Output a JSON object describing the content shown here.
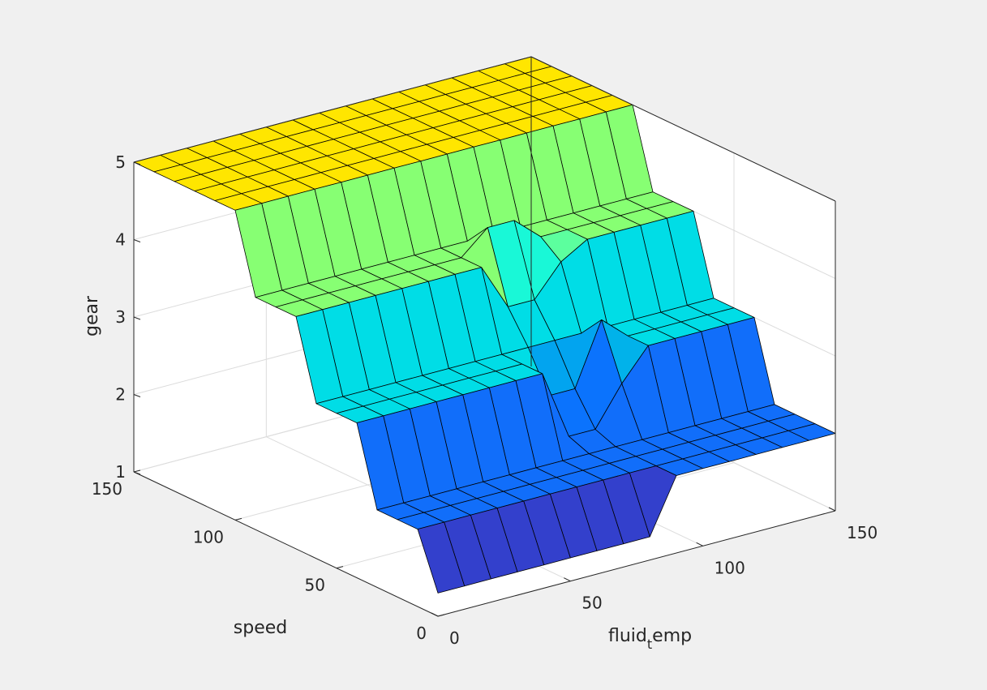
{
  "chart_data": {
    "type": "surface",
    "title": "",
    "xlabel": "speed",
    "ylabel": "fluid",
    "ylabel_subscript": "t",
    "ylabel_rest": "emp",
    "zlabel": "gear",
    "x_ticks": [
      "0",
      "50",
      "100",
      "150"
    ],
    "y_ticks": [
      "0",
      "50",
      "100",
      "150"
    ],
    "z_ticks": [
      "1",
      "2",
      "3",
      "4",
      "5"
    ],
    "xlim": [
      0,
      150
    ],
    "ylim": [
      0,
      150
    ],
    "zlim": [
      1,
      5
    ],
    "grid": true,
    "colormap": "parula",
    "x": [
      0,
      10,
      20,
      30,
      40,
      50,
      60,
      70,
      80,
      90,
      100,
      110,
      120,
      130,
      140,
      150
    ],
    "y": [
      0,
      10,
      20,
      30,
      40,
      50,
      60,
      70,
      80,
      90,
      100,
      110,
      120,
      130,
      140,
      150
    ],
    "z": [
      [
        1.3,
        1.3,
        1.3,
        1.3,
        1.3,
        1.3,
        1.3,
        1.3,
        1.3,
        2.0,
        2.0,
        2.0,
        2.0,
        2.0,
        2.0,
        2.0
      ],
      [
        2.0,
        2.0,
        2.0,
        2.0,
        2.0,
        2.0,
        2.0,
        2.0,
        2.0,
        2.0,
        2.0,
        2.0,
        2.0,
        2.0,
        2.0,
        2.0
      ],
      [
        2.0,
        2.0,
        2.0,
        2.0,
        2.0,
        2.0,
        2.0,
        2.0,
        2.0,
        2.0,
        2.0,
        2.0,
        2.0,
        2.0,
        2.0,
        2.0
      ],
      [
        2.0,
        2.0,
        2.0,
        2.0,
        2.0,
        2.0,
        2.0,
        2.0,
        2.0,
        2.0,
        2.0,
        2.0,
        2.0,
        2.0,
        2.0,
        2.0
      ],
      [
        3.0,
        3.0,
        3.0,
        3.0,
        3.0,
        3.0,
        3.0,
        3.0,
        2.1,
        2.1,
        2.6,
        3.0,
        3.0,
        3.0,
        3.0,
        3.0
      ],
      [
        3.0,
        3.0,
        3.0,
        3.0,
        3.0,
        3.0,
        3.0,
        3.0,
        2.5,
        2.5,
        3.3,
        3.0,
        3.0,
        3.0,
        3.0,
        3.0
      ],
      [
        3.0,
        3.0,
        3.0,
        3.0,
        3.0,
        3.0,
        3.0,
        3.0,
        3.0,
        3.0,
        3.0,
        3.0,
        3.0,
        3.0,
        3.0,
        3.0
      ],
      [
        4.0,
        4.0,
        4.0,
        4.0,
        4.0,
        4.0,
        4.0,
        4.0,
        3.4,
        3.4,
        3.8,
        4.0,
        4.0,
        4.0,
        4.0,
        4.0
      ],
      [
        4.0,
        4.0,
        4.0,
        4.0,
        4.0,
        4.0,
        4.0,
        4.0,
        4.3,
        4.3,
        4.0,
        4.0,
        4.0,
        4.0,
        4.0,
        4.0
      ],
      [
        4.0,
        4.0,
        4.0,
        4.0,
        4.0,
        4.0,
        4.0,
        4.0,
        4.0,
        4.0,
        4.0,
        4.0,
        4.0,
        4.0,
        4.0,
        4.0
      ],
      [
        5.0,
        5.0,
        5.0,
        5.0,
        5.0,
        5.0,
        5.0,
        5.0,
        5.0,
        5.0,
        5.0,
        5.0,
        5.0,
        5.0,
        5.0,
        5.0
      ],
      [
        5.0,
        5.0,
        5.0,
        5.0,
        5.0,
        5.0,
        5.0,
        5.0,
        5.0,
        5.0,
        5.0,
        5.0,
        5.0,
        5.0,
        5.0,
        5.0
      ],
      [
        5.0,
        5.0,
        5.0,
        5.0,
        5.0,
        5.0,
        5.0,
        5.0,
        5.0,
        5.0,
        5.0,
        5.0,
        5.0,
        5.0,
        5.0,
        5.0
      ],
      [
        5.0,
        5.0,
        5.0,
        5.0,
        5.0,
        5.0,
        5.0,
        5.0,
        5.0,
        5.0,
        5.0,
        5.0,
        5.0,
        5.0,
        5.0,
        5.0
      ],
      [
        5.0,
        5.0,
        5.0,
        5.0,
        5.0,
        5.0,
        5.0,
        5.0,
        5.0,
        5.0,
        5.0,
        5.0,
        5.0,
        5.0,
        5.0,
        5.0
      ],
      [
        5.0,
        5.0,
        5.0,
        5.0,
        5.0,
        5.0,
        5.0,
        5.0,
        5.0,
        5.0,
        5.0,
        5.0,
        5.0,
        5.0,
        5.0,
        5.0
      ]
    ]
  }
}
